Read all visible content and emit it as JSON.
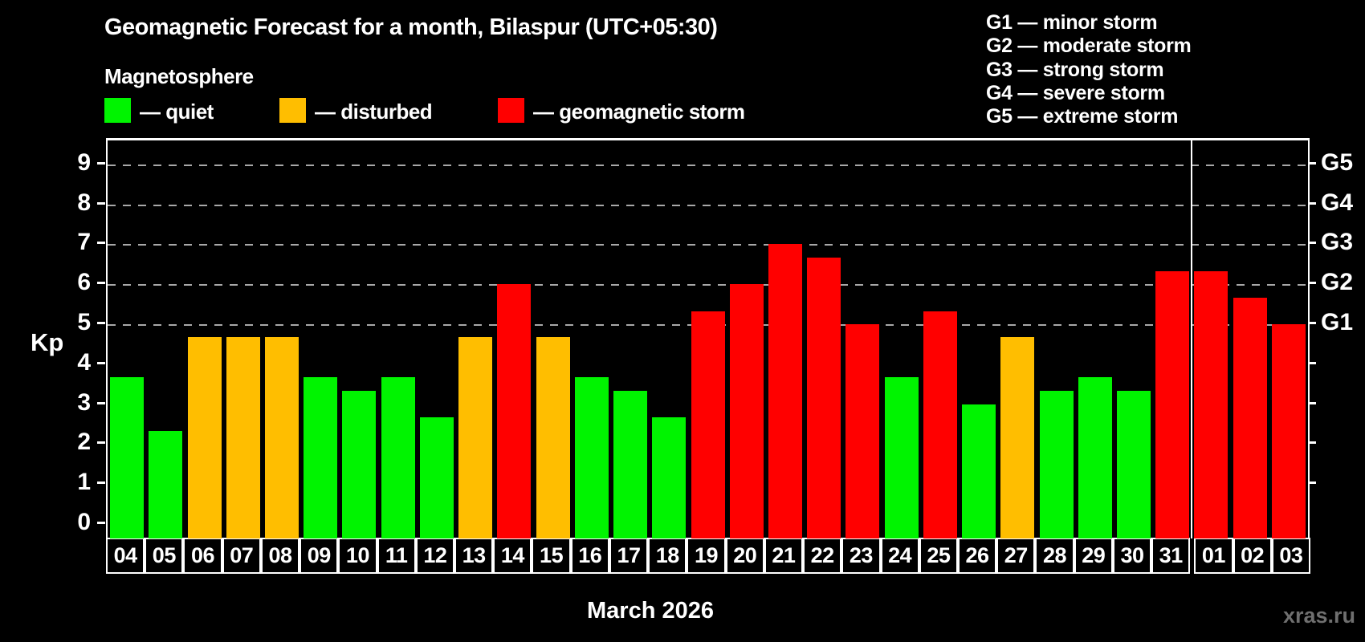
{
  "title": "Geomagnetic Forecast for a month, Bilaspur (UTC+05:30)",
  "subtitle": "Magnetosphere",
  "legend": {
    "quiet": "— quiet",
    "disturbed": "— disturbed",
    "storm": "— geomagnetic storm"
  },
  "storm_scale": [
    {
      "label": "G1 — minor storm"
    },
    {
      "label": "G2 — moderate storm"
    },
    {
      "label": "G3 — strong storm"
    },
    {
      "label": "G4 — severe storm"
    },
    {
      "label": "G5 — extreme storm"
    }
  ],
  "axis": {
    "left_label": "Kp",
    "left_ticks": [
      "0",
      "1",
      "2",
      "3",
      "4",
      "5",
      "6",
      "7",
      "8",
      "9"
    ]
  },
  "footer": {
    "month_label": "March 2026",
    "watermark": "xras.ru"
  },
  "colors": {
    "quiet": "#00f400",
    "disturbed": "#ffbe00",
    "storm": "#ff0000",
    "gridline": "#a8a8a8",
    "frame": "#ffffff"
  },
  "chart_data": {
    "type": "bar",
    "title": "Geomagnetic Forecast for a month, Bilaspur (UTC+05:30)",
    "xlabel": "March 2026",
    "ylabel": "Kp",
    "ylim": [
      0,
      9
    ],
    "grid_levels": [
      5,
      6,
      7,
      8,
      9
    ],
    "categories": [
      "04",
      "05",
      "06",
      "07",
      "08",
      "09",
      "10",
      "11",
      "12",
      "13",
      "14",
      "15",
      "16",
      "17",
      "18",
      "19",
      "20",
      "21",
      "22",
      "23",
      "24",
      "25",
      "26",
      "27",
      "28",
      "29",
      "30",
      "31",
      "01",
      "02",
      "03"
    ],
    "values": [
      3.67,
      2.33,
      4.67,
      4.67,
      4.67,
      3.67,
      3.33,
      3.67,
      2.67,
      4.67,
      6.0,
      4.67,
      3.67,
      3.33,
      2.67,
      5.33,
      6.0,
      7.0,
      6.67,
      5.0,
      3.67,
      5.33,
      3.0,
      4.67,
      3.33,
      3.67,
      3.33,
      6.33,
      6.33,
      5.67,
      5.0
    ],
    "statuses": [
      "quiet",
      "quiet",
      "disturbed",
      "disturbed",
      "disturbed",
      "quiet",
      "quiet",
      "quiet",
      "quiet",
      "disturbed",
      "storm",
      "disturbed",
      "quiet",
      "quiet",
      "quiet",
      "storm",
      "storm",
      "storm",
      "storm",
      "storm",
      "quiet",
      "storm",
      "quiet",
      "disturbed",
      "quiet",
      "quiet",
      "quiet",
      "storm",
      "storm",
      "storm",
      "storm"
    ],
    "right_axis_labels": [
      {
        "value": 5,
        "label": "G1"
      },
      {
        "value": 6,
        "label": "G2"
      },
      {
        "value": 7,
        "label": "G3"
      },
      {
        "value": 8,
        "label": "G4"
      },
      {
        "value": 9,
        "label": "G5"
      }
    ],
    "month_boundary_after_index": 27,
    "legend_position": "top"
  }
}
